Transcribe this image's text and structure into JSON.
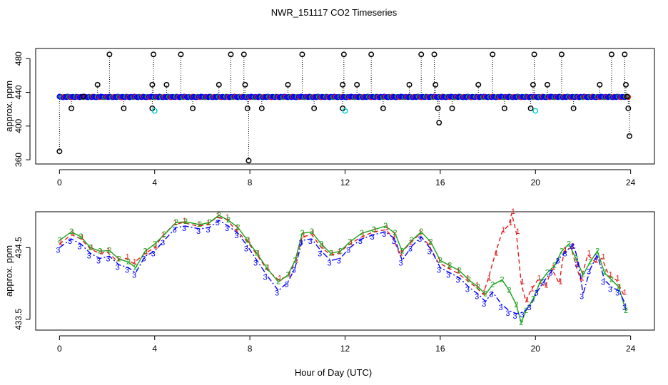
{
  "chart_data": [
    {
      "type": "scatter",
      "title": "NWR_151117  CO2 Timeseries",
      "xlabel": "",
      "ylabel": "approx. ppm",
      "xlim": [
        -1,
        25
      ],
      "ylim": [
        355,
        492
      ],
      "xticks": [
        0,
        4,
        8,
        12,
        16,
        20,
        24
      ],
      "yticks": [
        360,
        400,
        440,
        480
      ],
      "baseline": 434.5,
      "spikes": [
        {
          "x": 0.0,
          "y": 370
        },
        {
          "x": 0.5,
          "y": 421
        },
        {
          "x": 1.0,
          "y": 435
        },
        {
          "x": 1.6,
          "y": 449
        },
        {
          "x": 2.1,
          "y": 485
        },
        {
          "x": 2.7,
          "y": 421
        },
        {
          "x": 3.9,
          "y": 421
        },
        {
          "x": 3.9,
          "y": 449
        },
        {
          "x": 3.95,
          "y": 485
        },
        {
          "x": 4.5,
          "y": 449
        },
        {
          "x": 5.1,
          "y": 485
        },
        {
          "x": 5.6,
          "y": 421
        },
        {
          "x": 6.7,
          "y": 449
        },
        {
          "x": 7.2,
          "y": 485
        },
        {
          "x": 7.75,
          "y": 485
        },
        {
          "x": 7.8,
          "y": 449
        },
        {
          "x": 7.9,
          "y": 421
        },
        {
          "x": 7.95,
          "y": 359
        },
        {
          "x": 8.5,
          "y": 421
        },
        {
          "x": 9.6,
          "y": 449
        },
        {
          "x": 10.2,
          "y": 485
        },
        {
          "x": 10.7,
          "y": 421
        },
        {
          "x": 11.9,
          "y": 421
        },
        {
          "x": 11.9,
          "y": 449
        },
        {
          "x": 11.95,
          "y": 485
        },
        {
          "x": 12.5,
          "y": 449
        },
        {
          "x": 13.1,
          "y": 485
        },
        {
          "x": 13.6,
          "y": 421
        },
        {
          "x": 14.7,
          "y": 449
        },
        {
          "x": 15.2,
          "y": 485
        },
        {
          "x": 15.75,
          "y": 485
        },
        {
          "x": 15.8,
          "y": 449
        },
        {
          "x": 15.9,
          "y": 421
        },
        {
          "x": 15.95,
          "y": 404
        },
        {
          "x": 16.5,
          "y": 421
        },
        {
          "x": 17.6,
          "y": 449
        },
        {
          "x": 18.2,
          "y": 485
        },
        {
          "x": 18.7,
          "y": 421
        },
        {
          "x": 19.8,
          "y": 421
        },
        {
          "x": 19.9,
          "y": 449
        },
        {
          "x": 19.95,
          "y": 485
        },
        {
          "x": 20.5,
          "y": 449
        },
        {
          "x": 21.1,
          "y": 485
        },
        {
          "x": 21.6,
          "y": 421
        },
        {
          "x": 22.7,
          "y": 449
        },
        {
          "x": 23.2,
          "y": 485
        },
        {
          "x": 23.75,
          "y": 485
        },
        {
          "x": 23.8,
          "y": 449
        },
        {
          "x": 23.85,
          "y": 435
        },
        {
          "x": 23.9,
          "y": 421
        },
        {
          "x": 23.95,
          "y": 388
        }
      ],
      "cyan_points": [
        {
          "x": 4.0,
          "y": 418
        },
        {
          "x": 12.0,
          "y": 418
        },
        {
          "x": 20.0,
          "y": 418
        }
      ],
      "line_colors": {
        "black": "#000000",
        "red": "#e31a1c",
        "green": "#1aa31a",
        "blue": "#0000ff",
        "cyan": "#00d0d0"
      }
    },
    {
      "type": "line",
      "title": "",
      "xlabel": "Hour of Day (UTC)",
      "ylabel": "approx. ppm",
      "xlim": [
        -1,
        25
      ],
      "ylim": [
        433.35,
        435.0
      ],
      "xticks": [
        0,
        4,
        8,
        12,
        16,
        20,
        24
      ],
      "yticks": [
        433.5,
        434.5
      ],
      "series": [
        {
          "name": "1",
          "color": "#e31a1c",
          "dash": "6,4",
          "points": [
            [
              0,
              434.55
            ],
            [
              0.5,
              434.68
            ],
            [
              0.9,
              434.62
            ],
            [
              1.3,
              434.48
            ],
            [
              1.7,
              434.42
            ],
            [
              2.0,
              434.44
            ],
            [
              2.4,
              434.32
            ],
            [
              2.8,
              434.35
            ],
            [
              3.1,
              434.28
            ],
            [
              3.6,
              434.42
            ],
            [
              4.0,
              434.5
            ],
            [
              4.3,
              434.65
            ],
            [
              4.8,
              434.82
            ],
            [
              5.2,
              434.85
            ],
            [
              5.8,
              434.8
            ],
            [
              6.2,
              434.82
            ],
            [
              6.6,
              434.92
            ],
            [
              7.0,
              434.9
            ],
            [
              7.4,
              434.75
            ],
            [
              7.9,
              434.58
            ],
            [
              8.3,
              434.4
            ],
            [
              8.7,
              434.2
            ],
            [
              9.2,
              434.05
            ],
            [
              9.6,
              434.1
            ],
            [
              9.9,
              434.3
            ],
            [
              10.2,
              434.65
            ],
            [
              10.6,
              434.68
            ],
            [
              11.0,
              434.5
            ],
            [
              11.4,
              434.4
            ],
            [
              11.7,
              434.42
            ],
            [
              12.2,
              434.55
            ],
            [
              12.7,
              434.65
            ],
            [
              13.2,
              434.72
            ],
            [
              13.7,
              434.75
            ],
            [
              14.0,
              434.65
            ],
            [
              14.3,
              434.4
            ],
            [
              14.7,
              434.55
            ],
            [
              15.1,
              434.68
            ],
            [
              15.5,
              434.55
            ],
            [
              15.9,
              434.3
            ],
            [
              16.3,
              434.22
            ],
            [
              16.7,
              434.15
            ],
            [
              17.1,
              434.05
            ],
            [
              17.5,
              433.95
            ],
            [
              17.8,
              433.85
            ],
            [
              18.0,
              434.05
            ],
            [
              18.3,
              434.4
            ],
            [
              18.6,
              434.72
            ],
            [
              18.9,
              434.82
            ],
            [
              19.0,
              434.98
            ],
            [
              19.2,
              434.7
            ],
            [
              19.4,
              434.0
            ],
            [
              19.6,
              433.75
            ],
            [
              19.8,
              433.9
            ],
            [
              20.1,
              434.05
            ],
            [
              20.4,
              433.95
            ],
            [
              20.7,
              434.2
            ],
            [
              21.0,
              434.0
            ],
            [
              21.2,
              434.45
            ],
            [
              21.5,
              434.5
            ],
            [
              21.7,
              434.25
            ],
            [
              21.9,
              434.05
            ],
            [
              22.2,
              434.4
            ],
            [
              22.5,
              434.3
            ],
            [
              22.8,
              434.35
            ],
            [
              23.1,
              434.1
            ],
            [
              23.4,
              434.05
            ],
            [
              23.7,
              433.85
            ]
          ]
        },
        {
          "name": "2",
          "color": "#1aa31a",
          "dash": "",
          "points": [
            [
              0,
              434.6
            ],
            [
              0.5,
              434.72
            ],
            [
              0.9,
              434.65
            ],
            [
              1.3,
              434.5
            ],
            [
              1.7,
              434.45
            ],
            [
              2.1,
              434.46
            ],
            [
              2.5,
              434.34
            ],
            [
              2.9,
              434.3
            ],
            [
              3.2,
              434.22
            ],
            [
              3.6,
              434.45
            ],
            [
              4.0,
              434.55
            ],
            [
              4.4,
              434.68
            ],
            [
              4.9,
              434.85
            ],
            [
              5.3,
              434.86
            ],
            [
              5.9,
              434.82
            ],
            [
              6.3,
              434.85
            ],
            [
              6.7,
              434.95
            ],
            [
              7.1,
              434.88
            ],
            [
              7.5,
              434.78
            ],
            [
              7.9,
              434.6
            ],
            [
              8.3,
              434.42
            ],
            [
              8.7,
              434.22
            ],
            [
              9.2,
              434.02
            ],
            [
              9.6,
              434.12
            ],
            [
              9.9,
              434.32
            ],
            [
              10.2,
              434.7
            ],
            [
              10.6,
              434.72
            ],
            [
              11.0,
              434.55
            ],
            [
              11.4,
              434.42
            ],
            [
              11.8,
              434.45
            ],
            [
              12.2,
              434.58
            ],
            [
              12.7,
              434.7
            ],
            [
              13.2,
              434.75
            ],
            [
              13.7,
              434.8
            ],
            [
              14.1,
              434.7
            ],
            [
              14.4,
              434.45
            ],
            [
              14.8,
              434.6
            ],
            [
              15.2,
              434.72
            ],
            [
              15.6,
              434.58
            ],
            [
              16.0,
              434.32
            ],
            [
              16.4,
              434.25
            ],
            [
              16.8,
              434.18
            ],
            [
              17.2,
              434.05
            ],
            [
              17.6,
              433.95
            ],
            [
              17.9,
              433.85
            ],
            [
              18.2,
              433.98
            ],
            [
              18.6,
              434.05
            ],
            [
              18.9,
              433.9
            ],
            [
              19.2,
              433.7
            ],
            [
              19.4,
              433.45
            ],
            [
              19.6,
              433.62
            ],
            [
              19.9,
              433.78
            ],
            [
              20.2,
              434.02
            ],
            [
              20.5,
              434.15
            ],
            [
              20.8,
              434.25
            ],
            [
              21.1,
              434.45
            ],
            [
              21.4,
              434.55
            ],
            [
              21.7,
              434.35
            ],
            [
              22.0,
              434.12
            ],
            [
              22.3,
              434.3
            ],
            [
              22.6,
              434.45
            ],
            [
              22.9,
              434.15
            ],
            [
              23.2,
              434.05
            ],
            [
              23.5,
              433.95
            ],
            [
              23.8,
              433.62
            ]
          ]
        },
        {
          "name": "3",
          "color": "#0000ff",
          "dash": "8,3,2,3",
          "points": [
            [
              0,
              434.5
            ],
            [
              0.5,
              434.62
            ],
            [
              0.9,
              434.55
            ],
            [
              1.3,
              434.42
            ],
            [
              1.7,
              434.35
            ],
            [
              2.1,
              434.38
            ],
            [
              2.5,
              434.26
            ],
            [
              2.9,
              434.22
            ],
            [
              3.2,
              434.15
            ],
            [
              3.6,
              434.38
            ],
            [
              4.0,
              434.45
            ],
            [
              4.4,
              434.6
            ],
            [
              4.9,
              434.78
            ],
            [
              5.3,
              434.8
            ],
            [
              5.9,
              434.76
            ],
            [
              6.3,
              434.78
            ],
            [
              6.7,
              434.88
            ],
            [
              7.1,
              434.8
            ],
            [
              7.5,
              434.7
            ],
            [
              7.9,
              434.52
            ],
            [
              8.3,
              434.32
            ],
            [
              8.7,
              434.12
            ],
            [
              9.2,
              433.9
            ],
            [
              9.6,
              434.02
            ],
            [
              9.9,
              434.22
            ],
            [
              10.2,
              434.6
            ],
            [
              10.6,
              434.62
            ],
            [
              11.0,
              434.45
            ],
            [
              11.4,
              434.32
            ],
            [
              11.8,
              434.35
            ],
            [
              12.2,
              434.5
            ],
            [
              12.7,
              434.62
            ],
            [
              13.2,
              434.68
            ],
            [
              13.7,
              434.72
            ],
            [
              14.1,
              434.62
            ],
            [
              14.4,
              434.32
            ],
            [
              14.8,
              434.52
            ],
            [
              15.2,
              434.65
            ],
            [
              15.6,
              434.48
            ],
            [
              16.0,
              434.22
            ],
            [
              16.4,
              434.15
            ],
            [
              16.8,
              434.08
            ],
            [
              17.2,
              433.95
            ],
            [
              17.6,
              433.85
            ],
            [
              17.9,
              433.75
            ],
            [
              18.2,
              433.88
            ],
            [
              18.6,
              433.7
            ],
            [
              18.9,
              433.62
            ],
            [
              19.2,
              433.58
            ],
            [
              19.5,
              433.6
            ],
            [
              19.8,
              433.7
            ],
            [
              20.1,
              433.9
            ],
            [
              20.4,
              434.05
            ],
            [
              20.7,
              434.18
            ],
            [
              21.0,
              434.35
            ],
            [
              21.3,
              434.45
            ],
            [
              21.6,
              434.55
            ],
            [
              21.8,
              434.3
            ],
            [
              22.0,
              433.85
            ],
            [
              22.3,
              434.2
            ],
            [
              22.6,
              434.4
            ],
            [
              22.9,
              434.05
            ],
            [
              23.2,
              433.95
            ],
            [
              23.5,
              433.9
            ],
            [
              23.8,
              433.7
            ]
          ]
        }
      ]
    }
  ]
}
